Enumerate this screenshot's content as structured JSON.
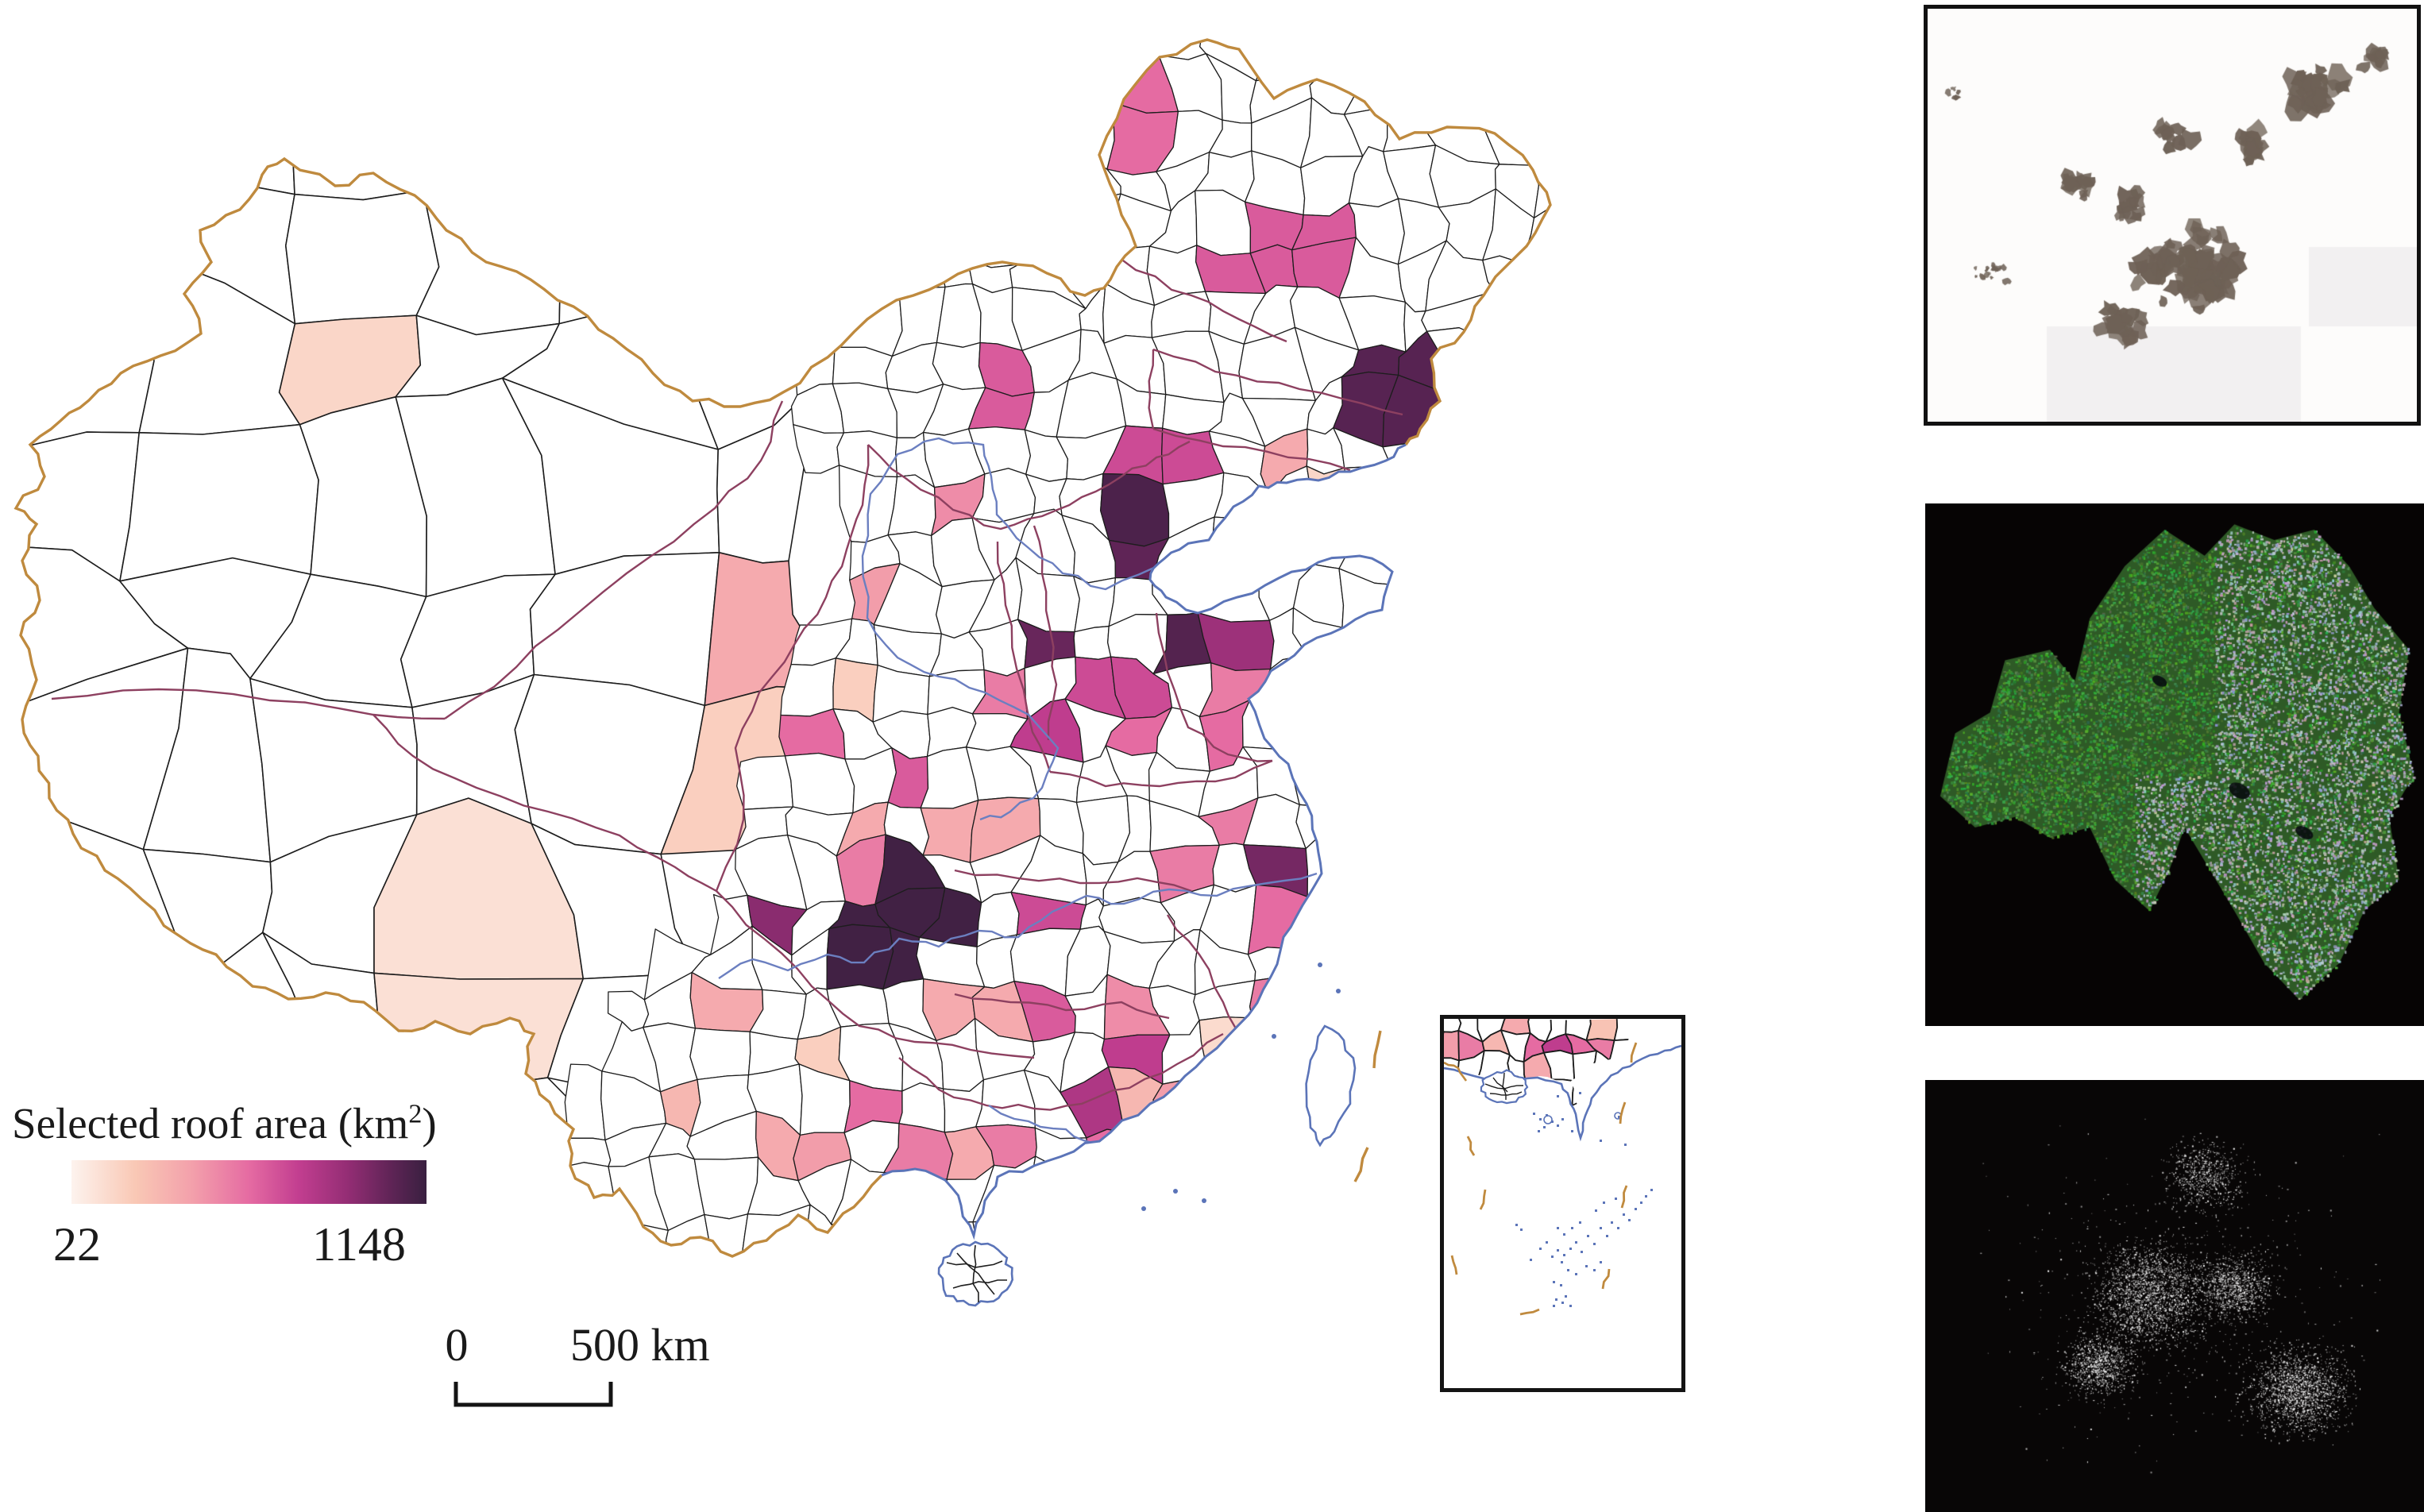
{
  "figure": {
    "legend": {
      "title_prefix": "Selected roof area (km",
      "title_sup": "2",
      "title_suffix": ")",
      "min_label": "22",
      "max_label": "1148"
    },
    "scalebar": {
      "zero_label": "0",
      "distance_label": "500 km"
    }
  },
  "colors": {
    "colormap": [
      [
        0.0,
        "#fdf3ee"
      ],
      [
        0.18,
        "#f9c8b5"
      ],
      [
        0.34,
        "#f3a0ab"
      ],
      [
        0.5,
        "#e56ba2"
      ],
      [
        0.64,
        "#c23e90"
      ],
      [
        0.78,
        "#932d74"
      ],
      [
        0.9,
        "#5f2456"
      ],
      [
        1.0,
        "#392040"
      ]
    ],
    "county_border": "#1d1d1d",
    "province_border": "#8d4060",
    "national_border": "#bf8a3e",
    "coastline": "#5b74b8",
    "dash_line": "#c08a3e",
    "panel_border": "#111111",
    "sample_blob": "#6e6156",
    "mask_speckle": "#ffffff"
  },
  "map": {
    "value_min": 22,
    "value_max": 1148,
    "regions": [
      [
        500,
        520,
        0.45,
        40
      ],
      [
        437,
        444,
        0.12,
        20
      ],
      [
        590,
        1165,
        0.08,
        90
      ],
      [
        660,
        1240,
        0.08,
        40
      ],
      [
        870,
        745,
        0.3,
        30
      ],
      [
        1000,
        935,
        0.5,
        30
      ],
      [
        940,
        898,
        0.15,
        20
      ],
      [
        1080,
        758,
        0.35,
        30
      ],
      [
        1190,
        200,
        0.45,
        40
      ],
      [
        1335,
        265,
        0.5,
        40
      ],
      [
        1620,
        330,
        0.55,
        70
      ],
      [
        1760,
        480,
        0.92,
        66
      ],
      [
        1900,
        430,
        0.25,
        40
      ],
      [
        1420,
        140,
        0.5,
        36
      ],
      [
        1460,
        590,
        0.6,
        36
      ],
      [
        1620,
        565,
        0.45,
        26
      ],
      [
        1612,
        600,
        0.3,
        24
      ],
      [
        1655,
        612,
        0.12,
        22
      ],
      [
        1260,
        470,
        0.55,
        50
      ],
      [
        1190,
        640,
        0.4,
        40
      ],
      [
        1490,
        575,
        0.6,
        40
      ],
      [
        1420,
        660,
        0.95,
        36
      ],
      [
        1448,
        706,
        0.9,
        26
      ],
      [
        1345,
        820,
        0.88,
        34
      ],
      [
        1392,
        846,
        0.6,
        26
      ],
      [
        1282,
        855,
        0.45,
        26
      ],
      [
        1075,
        845,
        0.15,
        26
      ],
      [
        1440,
        875,
        0.6,
        30
      ],
      [
        1472,
        810,
        0.45,
        22
      ],
      [
        1518,
        810,
        0.93,
        34
      ],
      [
        1558,
        816,
        0.75,
        30
      ],
      [
        1528,
        858,
        0.45,
        24
      ],
      [
        1576,
        925,
        0.5,
        26
      ],
      [
        1340,
        920,
        0.65,
        32
      ],
      [
        1430,
        935,
        0.5,
        28
      ],
      [
        1175,
        955,
        0.55,
        32
      ],
      [
        990,
        1135,
        0.8,
        36
      ],
      [
        1130,
        1165,
        0.98,
        88
      ],
      [
        1108,
        1118,
        0.45,
        26
      ],
      [
        1065,
        1015,
        0.3,
        28
      ],
      [
        935,
        1290,
        0.3,
        30
      ],
      [
        1010,
        1345,
        0.15,
        28
      ],
      [
        880,
        1385,
        0.25,
        30
      ],
      [
        965,
        1435,
        0.3,
        30
      ],
      [
        1045,
        1440,
        0.35,
        30
      ],
      [
        1105,
        1415,
        0.5,
        30
      ],
      [
        1180,
        1300,
        0.3,
        30
      ],
      [
        1262,
        1270,
        0.3,
        26
      ],
      [
        1292,
        1262,
        0.55,
        30
      ],
      [
        1345,
        1135,
        0.6,
        32
      ],
      [
        1235,
        1035,
        0.3,
        32
      ],
      [
        1470,
        1080,
        0.45,
        28
      ],
      [
        1545,
        1060,
        0.45,
        26
      ],
      [
        1600,
        1082,
        0.75,
        26
      ],
      [
        1638,
        1104,
        0.85,
        30
      ],
      [
        1608,
        1155,
        0.6,
        28
      ],
      [
        1620,
        1185,
        0.5,
        24
      ],
      [
        1585,
        1265,
        0.45,
        26
      ],
      [
        1415,
        1255,
        0.4,
        26
      ],
      [
        1425,
        1325,
        0.65,
        40
      ],
      [
        1430,
        1378,
        0.25,
        26
      ],
      [
        1505,
        1380,
        0.35,
        20
      ],
      [
        1553,
        1337,
        0.1,
        18
      ],
      [
        1377,
        1403,
        0.7,
        24
      ],
      [
        1392,
        1432,
        0.6,
        18
      ],
      [
        1350,
        1460,
        0.5,
        22
      ],
      [
        1175,
        1435,
        0.45,
        30
      ],
      [
        1230,
        1420,
        0.3,
        26
      ],
      [
        1245,
        1465,
        0.45,
        24
      ],
      [
        1198,
        1472,
        0.3,
        24
      ]
    ]
  },
  "inset": {
    "regions": [
      [
        15,
        25,
        0.35
      ],
      [
        45,
        28,
        0.45
      ],
      [
        78,
        20,
        0.3
      ],
      [
        58,
        46,
        0.25
      ],
      [
        108,
        32,
        0.5
      ],
      [
        140,
        22,
        0.65
      ],
      [
        165,
        30,
        0.5
      ],
      [
        192,
        28,
        0.45
      ],
      [
        115,
        55,
        0.3
      ],
      [
        210,
        12,
        0.2
      ]
    ]
  }
}
